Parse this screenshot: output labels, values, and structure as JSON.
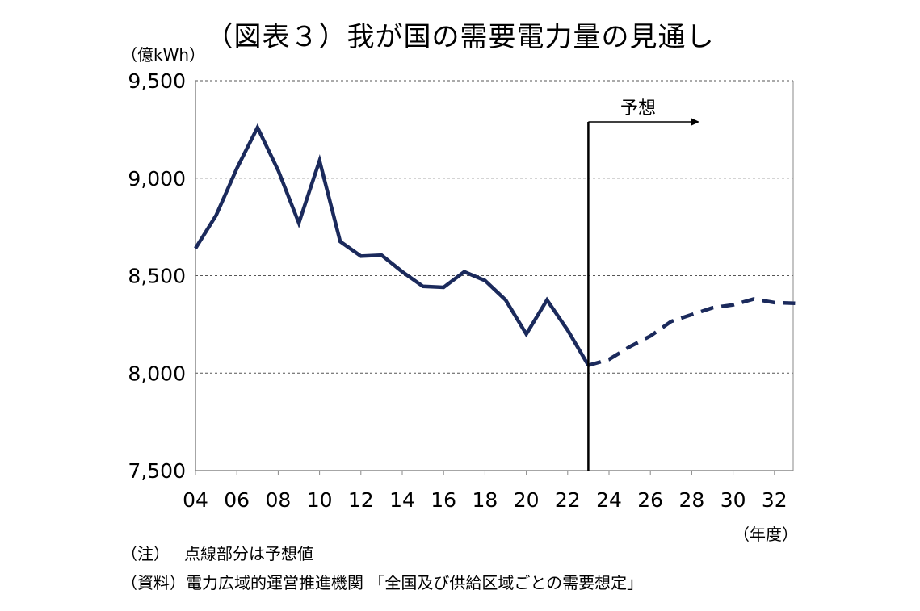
{
  "title": "（図表３）我が国の需要電力量の見通し",
  "y_unit": "（億kWh）",
  "x_unit": "（年度）",
  "note_label": "（注）",
  "note_text": "点線部分は予想値",
  "source_label": "（資料）",
  "source_text": "電力広域的運営推進機関 「全国及び供給区域ごとの需要想定」",
  "forecast_label": "予想",
  "colors": {
    "line": "#1b2a5c",
    "grid": "#555555",
    "axis": "#888888"
  },
  "chart_data": {
    "type": "line",
    "title": "（図表３）我が国の需要電力量の見通し",
    "ylabel": "（億kWh）",
    "xlabel": "（年度）",
    "ylim": [
      7500,
      9500
    ],
    "xlim": [
      4,
      33
    ],
    "yticks": [
      7500,
      8000,
      8500,
      9000,
      9500
    ],
    "ytick_labels": [
      "7,500",
      "8,000",
      "8,500",
      "9,000",
      "9,500"
    ],
    "xticks": [
      4,
      6,
      8,
      10,
      12,
      14,
      16,
      18,
      20,
      22,
      24,
      26,
      28,
      30,
      32
    ],
    "xtick_labels": [
      "04",
      "06",
      "08",
      "10",
      "12",
      "14",
      "16",
      "18",
      "20",
      "22",
      "24",
      "26",
      "28",
      "30",
      "32"
    ],
    "grid": "horizontal dashed",
    "forecast_start_x": 23,
    "series": [
      {
        "style": "solid",
        "x": [
          4,
          5,
          6,
          7,
          8,
          9,
          10,
          11,
          12,
          13,
          14,
          15,
          16,
          17,
          18,
          19,
          20,
          21,
          22,
          23
        ],
        "values": [
          8640,
          8810,
          9050,
          9260,
          9040,
          8770,
          9090,
          8675,
          8600,
          8605,
          8520,
          8445,
          8440,
          8520,
          8475,
          8375,
          8200,
          8375,
          8220,
          8040
        ]
      },
      {
        "style": "dashed",
        "x": [
          23,
          24,
          25,
          26,
          27,
          28,
          29,
          30,
          31,
          32,
          33
        ],
        "values": [
          8040,
          8070,
          8135,
          8190,
          8265,
          8300,
          8335,
          8350,
          8380,
          8362,
          8358
        ]
      }
    ]
  }
}
